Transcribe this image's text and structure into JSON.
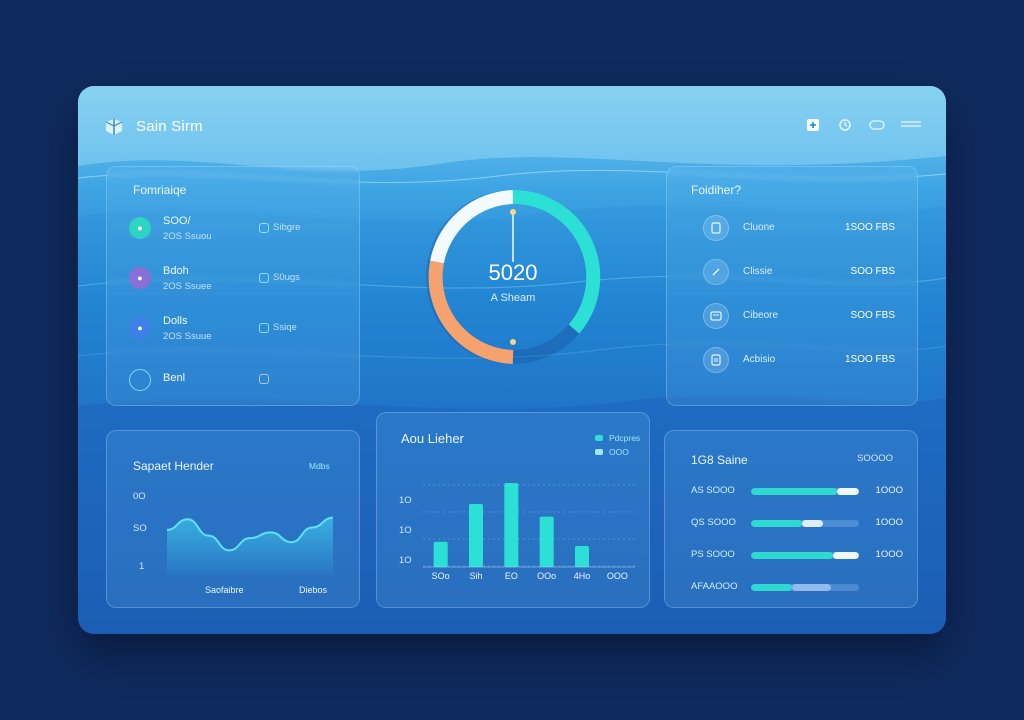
{
  "app": {
    "title": "Sain Sirm"
  },
  "colors": {
    "accent": "#2fd9d2",
    "orange": "#f5a26e",
    "bg": "#0f2a5e"
  },
  "top_icons": [
    "plus-square-icon",
    "refresh-icon",
    "toggle-icon",
    "menu-icon"
  ],
  "left_panel": {
    "title": "Fomriaiqe",
    "items": [
      {
        "name": "SOO/",
        "sub": "2OS Ssuou",
        "meta": "Sibgre",
        "dot_color": "#2ed4c2",
        "icon": "leaf-icon"
      },
      {
        "name": "Bdoh",
        "sub": "2OS Ssuee",
        "meta": "S0ugs",
        "dot_color": "#8a6fd6",
        "icon": "user-icon"
      },
      {
        "name": "Dolls",
        "sub": "2OS Ssuue",
        "meta": "Ssiqe",
        "dot_color": "#3f7fe8",
        "icon": "drop-icon"
      },
      {
        "name": "Benl",
        "sub": "",
        "meta": "",
        "dot_color": "",
        "icon": "circle-icon"
      }
    ]
  },
  "gauge": {
    "value": "5020",
    "label": "A Sheam",
    "progress": 0.72
  },
  "right_panel": {
    "title": "Foidiher?",
    "items": [
      {
        "label": "Cluone",
        "value": "1SOO FBS",
        "icon": "doc-icon"
      },
      {
        "label": "Clissie",
        "value": "SOO FBS",
        "icon": "edit-icon"
      },
      {
        "label": "Cibeore",
        "value": "SOO FBS",
        "icon": "card-icon"
      },
      {
        "label": "Acbisio",
        "value": "1SOO FBS",
        "icon": "file-icon"
      }
    ]
  },
  "line_panel": {
    "title": "Sapaet Hender",
    "badge": "Mdbs",
    "y_labels": [
      "0O",
      "SO",
      "1"
    ],
    "x_labels": [
      "Saofaibre",
      "Diebos"
    ]
  },
  "bar_panel": {
    "title": "Aou Lieher",
    "legend": [
      "Pdcpres",
      "OOO"
    ],
    "y_labels": [
      "1O",
      "1O",
      "1O"
    ],
    "x_labels": [
      "SOo",
      "Sih",
      "EO",
      "OOo",
      "4Ho",
      "OOO"
    ]
  },
  "progress_panel": {
    "title": "1G8 Saine",
    "badge": "SOOOO",
    "rows": [
      {
        "label": "AS SOOO",
        "value": "1OOO",
        "fill": 0.8,
        "fill2": 1.0
      },
      {
        "label": "QS SOOO",
        "value": "1OOO",
        "fill": 0.47,
        "fill2": 0.67
      },
      {
        "label": "PS SOOO",
        "value": "1OOO",
        "fill": 0.76,
        "fill2": 1.0
      },
      {
        "label": "AFAAOOO",
        "value": "",
        "fill": 0.38,
        "fill2": 0.74
      }
    ]
  },
  "chart_data": [
    {
      "type": "area",
      "title": "Sapaet Hender",
      "x": [
        0,
        1,
        2,
        3,
        4,
        5,
        6,
        7,
        8
      ],
      "values": [
        55,
        68,
        48,
        30,
        45,
        52,
        40,
        58,
        70
      ],
      "ylim": [
        0,
        100
      ]
    },
    {
      "type": "bar",
      "title": "Aou Lieher",
      "categories": [
        "SOo",
        "Sih",
        "EO",
        "OOo",
        "4Ho",
        "OOO"
      ],
      "values": [
        30,
        75,
        100,
        60,
        25,
        0
      ],
      "ylim": [
        0,
        100
      ]
    }
  ]
}
